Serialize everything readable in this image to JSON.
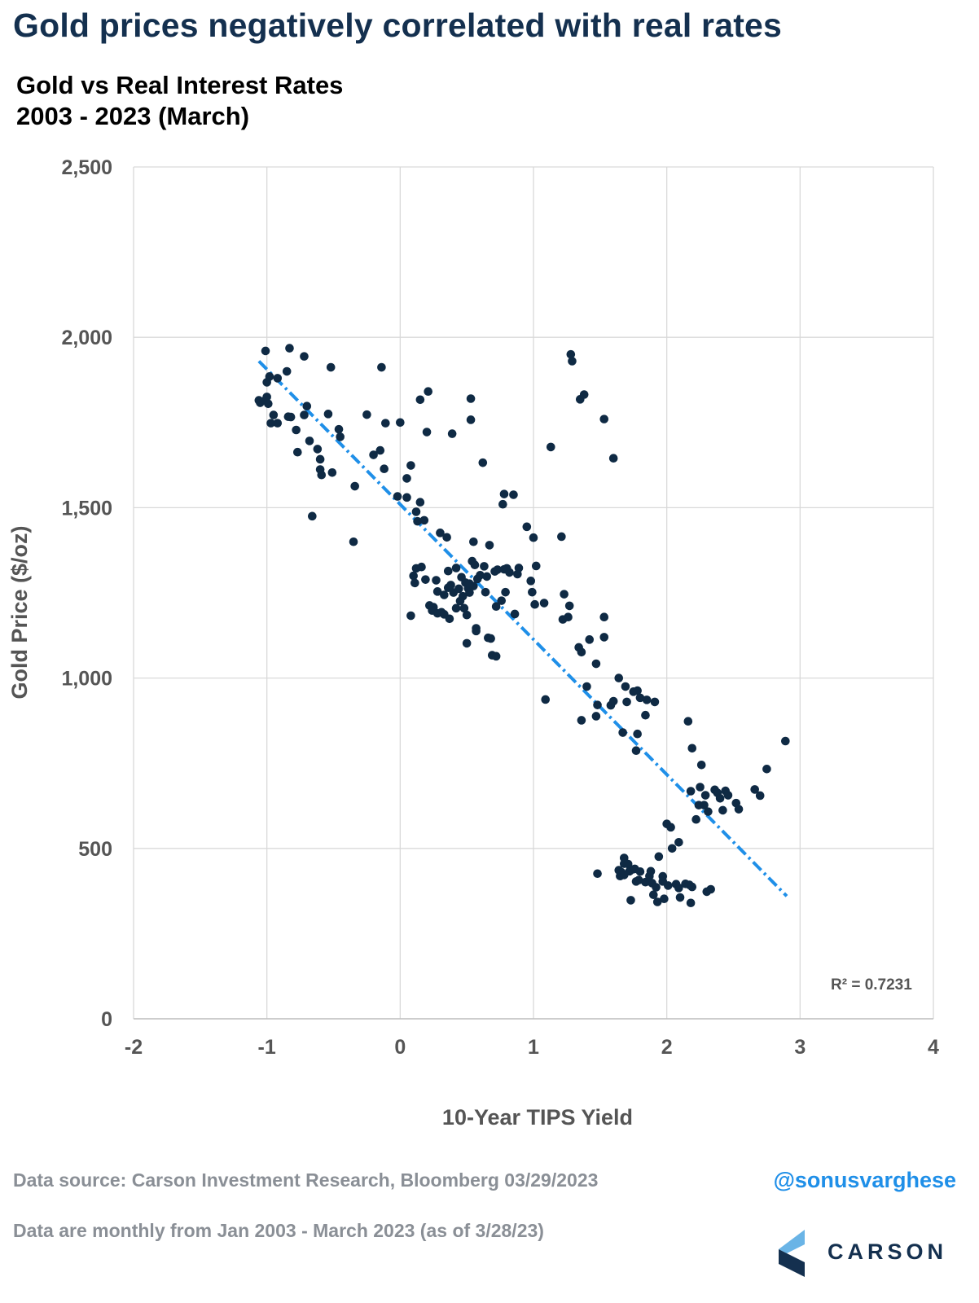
{
  "headline": "Gold prices negatively correlated with real rates",
  "subtitle": {
    "line1": "Gold vs Real Interest Rates",
    "line2": "2003 - 2023 (March)"
  },
  "footer": {
    "source": "Data source: Carson Investment Research, Bloomberg   03/29/2023",
    "note": "Data are monthly from Jan 2003 - March 2023 (as of 3/28/23)",
    "handle": "@sonusvarghese",
    "brand": "CARSON",
    "brand_icon": "carson-chevron-logo"
  },
  "colors": {
    "headline": "#14304f",
    "points": "#0f2a44",
    "trendline": "#1f8fe8",
    "handle": "#1f8fe8",
    "footer_text": "#8a8f96",
    "grid": "#d9d9d9"
  },
  "chart_data": {
    "type": "scatter",
    "title": "",
    "xlabel": "10-Year TIPS Yield",
    "ylabel": "Gold Price ($/oz)",
    "xlim": [
      -2,
      4
    ],
    "ylim": [
      0,
      2500
    ],
    "x_ticks": [
      "-2",
      "-1",
      "0",
      "1",
      "2",
      "3",
      "4"
    ],
    "y_ticks": [
      "0",
      "500",
      "1,000",
      "1,500",
      "2,000",
      "2,500"
    ],
    "x_tick_values": [
      -2,
      -1,
      0,
      1,
      2,
      3,
      4
    ],
    "y_tick_values": [
      0,
      500,
      1000,
      1500,
      2000,
      2500
    ],
    "grid": "vertical and horizontal",
    "trendline": {
      "style": "dash-dot",
      "x_start": -1.06,
      "y_start": 1930,
      "x_end": 2.9,
      "y_end": 360,
      "r2_label": "R² = 0.7231"
    },
    "points": [
      [
        -1.06,
        1815
      ],
      [
        -1.05,
        1808
      ],
      [
        -1.01,
        1960
      ],
      [
        -1.0,
        1868
      ],
      [
        -1.0,
        1825
      ],
      [
        -1.01,
        1816
      ],
      [
        -0.99,
        1805
      ],
      [
        -0.98,
        1885
      ],
      [
        -0.97,
        1748
      ],
      [
        -0.95,
        1772
      ],
      [
        -0.92,
        1880
      ],
      [
        -0.92,
        1748
      ],
      [
        -0.85,
        1900
      ],
      [
        -0.84,
        1767
      ],
      [
        -0.83,
        1968
      ],
      [
        -0.82,
        1766
      ],
      [
        -0.78,
        1728
      ],
      [
        -0.77,
        1663
      ],
      [
        -0.72,
        1944
      ],
      [
        -0.72,
        1772
      ],
      [
        -0.7,
        1798
      ],
      [
        -0.68,
        1696
      ],
      [
        -0.66,
        1475
      ],
      [
        -0.62,
        1672
      ],
      [
        -0.6,
        1642
      ],
      [
        -0.6,
        1612
      ],
      [
        -0.59,
        1596
      ],
      [
        -0.54,
        1775
      ],
      [
        -0.52,
        1912
      ],
      [
        -0.51,
        1603
      ],
      [
        -0.46,
        1730
      ],
      [
        -0.45,
        1708
      ],
      [
        -0.35,
        1400
      ],
      [
        -0.34,
        1563
      ],
      [
        -0.25,
        1773
      ],
      [
        -0.2,
        1655
      ],
      [
        -0.15,
        1668
      ],
      [
        -0.14,
        1912
      ],
      [
        -0.12,
        1614
      ],
      [
        -0.11,
        1748
      ],
      [
        -0.02,
        1533
      ],
      [
        0.0,
        1750
      ],
      [
        0.05,
        1530
      ],
      [
        0.05,
        1586
      ],
      [
        0.08,
        1624
      ],
      [
        0.08,
        1183
      ],
      [
        0.1,
        1300
      ],
      [
        0.11,
        1279
      ],
      [
        0.12,
        1488
      ],
      [
        0.12,
        1322
      ],
      [
        0.13,
        1460
      ],
      [
        0.15,
        1516
      ],
      [
        0.15,
        1817
      ],
      [
        0.16,
        1326
      ],
      [
        0.18,
        1463
      ],
      [
        0.19,
        1289
      ],
      [
        0.2,
        1722
      ],
      [
        0.21,
        1841
      ],
      [
        0.22,
        1213
      ],
      [
        0.25,
        1208
      ],
      [
        0.24,
        1198
      ],
      [
        0.27,
        1287
      ],
      [
        0.28,
        1254
      ],
      [
        0.28,
        1190
      ],
      [
        0.3,
        1426
      ],
      [
        0.31,
        1193
      ],
      [
        0.33,
        1187
      ],
      [
        0.33,
        1244
      ],
      [
        0.35,
        1413
      ],
      [
        0.36,
        1314
      ],
      [
        0.36,
        1265
      ],
      [
        0.37,
        1174
      ],
      [
        0.38,
        1273
      ],
      [
        0.39,
        1717
      ],
      [
        0.4,
        1251
      ],
      [
        0.42,
        1205
      ],
      [
        0.42,
        1323
      ],
      [
        0.44,
        1262
      ],
      [
        0.45,
        1226
      ],
      [
        0.46,
        1296
      ],
      [
        0.47,
        1240
      ],
      [
        0.48,
        1205
      ],
      [
        0.49,
        1280
      ],
      [
        0.5,
        1102
      ],
      [
        0.5,
        1185
      ],
      [
        0.51,
        1263
      ],
      [
        0.52,
        1251
      ],
      [
        0.52,
        1277
      ],
      [
        0.53,
        1820
      ],
      [
        0.53,
        1758
      ],
      [
        0.54,
        1343
      ],
      [
        0.55,
        1270
      ],
      [
        0.55,
        1400
      ],
      [
        0.56,
        1332
      ],
      [
        0.57,
        1146
      ],
      [
        0.57,
        1138
      ],
      [
        0.58,
        1291
      ],
      [
        0.6,
        1302
      ],
      [
        0.62,
        1632
      ],
      [
        0.63,
        1328
      ],
      [
        0.64,
        1252
      ],
      [
        0.65,
        1298
      ],
      [
        0.66,
        1118
      ],
      [
        0.67,
        1390
      ],
      [
        0.68,
        1116
      ],
      [
        0.69,
        1067
      ],
      [
        0.71,
        1313
      ],
      [
        0.72,
        1210
      ],
      [
        0.72,
        1064
      ],
      [
        0.73,
        1318
      ],
      [
        0.76,
        1227
      ],
      [
        0.77,
        1510
      ],
      [
        0.78,
        1540
      ],
      [
        0.78,
        1319
      ],
      [
        0.79,
        1252
      ],
      [
        0.8,
        1322
      ],
      [
        0.82,
        1310
      ],
      [
        0.85,
        1538
      ],
      [
        0.86,
        1188
      ],
      [
        0.88,
        1305
      ],
      [
        0.89,
        1323
      ],
      [
        0.95,
        1444
      ],
      [
        0.98,
        1285
      ],
      [
        0.99,
        1252
      ],
      [
        1.0,
        1412
      ],
      [
        1.01,
        1216
      ],
      [
        1.02,
        1329
      ],
      [
        1.08,
        1220
      ],
      [
        1.09,
        937
      ],
      [
        1.13,
        1678
      ],
      [
        1.21,
        1415
      ],
      [
        1.22,
        1172
      ],
      [
        1.23,
        1246
      ],
      [
        1.26,
        1179
      ],
      [
        1.27,
        1212
      ],
      [
        1.28,
        1950
      ],
      [
        1.29,
        1930
      ],
      [
        1.34,
        1090
      ],
      [
        1.35,
        1818
      ],
      [
        1.36,
        876
      ],
      [
        1.36,
        1076
      ],
      [
        1.38,
        1832
      ],
      [
        1.4,
        975
      ],
      [
        1.42,
        1113
      ],
      [
        1.47,
        1042
      ],
      [
        1.47,
        888
      ],
      [
        1.48,
        921
      ],
      [
        1.48,
        426
      ],
      [
        1.53,
        1120
      ],
      [
        1.53,
        1179
      ],
      [
        1.53,
        1760
      ],
      [
        1.58,
        920
      ],
      [
        1.6,
        1645
      ],
      [
        1.6,
        932
      ],
      [
        1.64,
        436
      ],
      [
        1.64,
        1000
      ],
      [
        1.65,
        419
      ],
      [
        1.66,
        430
      ],
      [
        1.67,
        840
      ],
      [
        1.68,
        472
      ],
      [
        1.68,
        455
      ],
      [
        1.68,
        422
      ],
      [
        1.69,
        975
      ],
      [
        1.7,
        930
      ],
      [
        1.71,
        454
      ],
      [
        1.72,
        433
      ],
      [
        1.73,
        348
      ],
      [
        1.74,
        438
      ],
      [
        1.75,
        960
      ],
      [
        1.76,
        440
      ],
      [
        1.77,
        787
      ],
      [
        1.77,
        403
      ],
      [
        1.78,
        963
      ],
      [
        1.78,
        836
      ],
      [
        1.79,
        407
      ],
      [
        1.8,
        432
      ],
      [
        1.8,
        942
      ],
      [
        1.84,
        891
      ],
      [
        1.84,
        401
      ],
      [
        1.85,
        936
      ],
      [
        1.87,
        419
      ],
      [
        1.88,
        433
      ],
      [
        1.89,
        398
      ],
      [
        1.9,
        364
      ],
      [
        1.91,
        930
      ],
      [
        1.92,
        386
      ],
      [
        1.93,
        343
      ],
      [
        1.94,
        476
      ],
      [
        1.97,
        403
      ],
      [
        1.97,
        418
      ],
      [
        1.98,
        352
      ],
      [
        2.0,
        572
      ],
      [
        2.01,
        391
      ],
      [
        2.03,
        562
      ],
      [
        2.04,
        500
      ],
      [
        2.07,
        395
      ],
      [
        2.09,
        384
      ],
      [
        2.09,
        518
      ],
      [
        2.1,
        356
      ],
      [
        2.14,
        396
      ],
      [
        2.16,
        873
      ],
      [
        2.17,
        393
      ],
      [
        2.18,
        668
      ],
      [
        2.18,
        340
      ],
      [
        2.19,
        794
      ],
      [
        2.19,
        387
      ],
      [
        2.22,
        585
      ],
      [
        2.24,
        627
      ],
      [
        2.25,
        680
      ],
      [
        2.26,
        745
      ],
      [
        2.28,
        627
      ],
      [
        2.29,
        656
      ],
      [
        2.3,
        373
      ],
      [
        2.31,
        608
      ],
      [
        2.33,
        380
      ],
      [
        2.36,
        672
      ],
      [
        2.38,
        663
      ],
      [
        2.4,
        647
      ],
      [
        2.42,
        612
      ],
      [
        2.44,
        669
      ],
      [
        2.46,
        656
      ],
      [
        2.52,
        633
      ],
      [
        2.54,
        615
      ],
      [
        2.66,
        673
      ],
      [
        2.7,
        655
      ],
      [
        2.75,
        733
      ],
      [
        2.89,
        815
      ]
    ]
  }
}
